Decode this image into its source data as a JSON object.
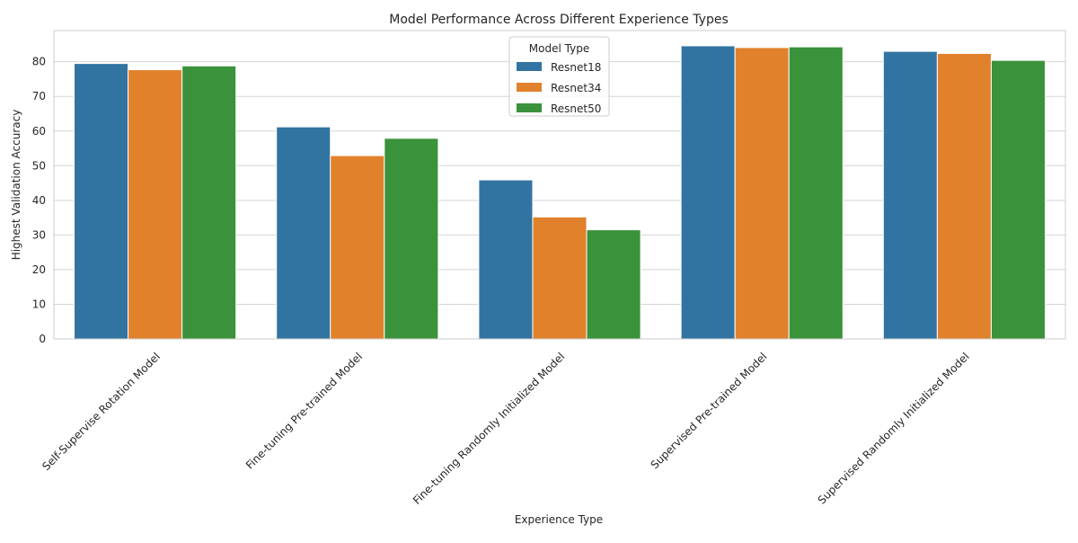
{
  "chart_data": {
    "type": "bar",
    "title": "Model Performance Across Different Experience Types",
    "xlabel": "Experience Type",
    "ylabel": "Highest Validation Accuracy",
    "ylim": [
      0,
      89
    ],
    "yticks": [
      0,
      10,
      20,
      30,
      40,
      50,
      60,
      70,
      80
    ],
    "grid": true,
    "categories": [
      "Self-Supervise Rotation Model",
      "Fine-tuning Pre-trained Model",
      "Fine-tuning Randomly Initialized Model",
      "Supervised Pre-trained Model",
      "Supervised Randomly Initialized Model"
    ],
    "legend": {
      "title": "Model Type",
      "placement": "top-center"
    },
    "series": [
      {
        "name": "Resnet18",
        "color": "#3274a1",
        "values": [
          79.5,
          61.2,
          45.9,
          84.6,
          83.0
        ]
      },
      {
        "name": "Resnet34",
        "color": "#e1812c",
        "values": [
          77.7,
          52.9,
          35.2,
          84.1,
          82.4
        ]
      },
      {
        "name": "Resnet50",
        "color": "#3a923a",
        "values": [
          78.8,
          57.9,
          31.5,
          84.3,
          80.4
        ]
      }
    ]
  }
}
